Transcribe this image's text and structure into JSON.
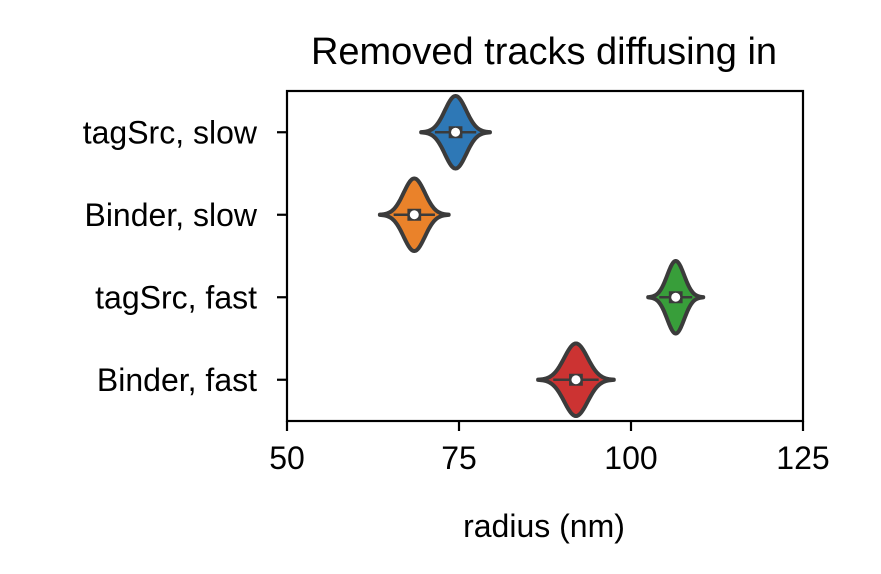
{
  "chart_data": {
    "type": "violin",
    "orientation": "horizontal",
    "title": "Removed tracks diffusing in",
    "xlabel": "radius (nm)",
    "ylabel": "",
    "xlim": [
      50,
      125
    ],
    "xticks": [
      "50",
      "75",
      "100",
      "125"
    ],
    "categories": [
      "tagSrc, slow",
      "Binder, slow",
      "tagSrc, fast",
      "Binder, fast"
    ],
    "colors": [
      "#2e78b6",
      "#ea822a",
      "#389e3a",
      "#cc3332"
    ],
    "outline_color": "#3b3b3b",
    "grid": false,
    "violins": [
      {
        "category": "tagSrc, slow",
        "median": 74.5,
        "q1": 73.5,
        "q3": 75.5,
        "min": 69.5,
        "max": 79.5
      },
      {
        "category": "Binder, slow",
        "median": 68.5,
        "q1": 67.5,
        "q3": 69.5,
        "min": 63.5,
        "max": 73.5
      },
      {
        "category": "tagSrc, fast",
        "median": 106.5,
        "q1": 105.5,
        "q3": 107.5,
        "min": 102.5,
        "max": 110.5
      },
      {
        "category": "Binder, fast",
        "median": 92.0,
        "q1": 91.0,
        "q3": 93.0,
        "min": 86.5,
        "max": 97.5
      }
    ]
  }
}
